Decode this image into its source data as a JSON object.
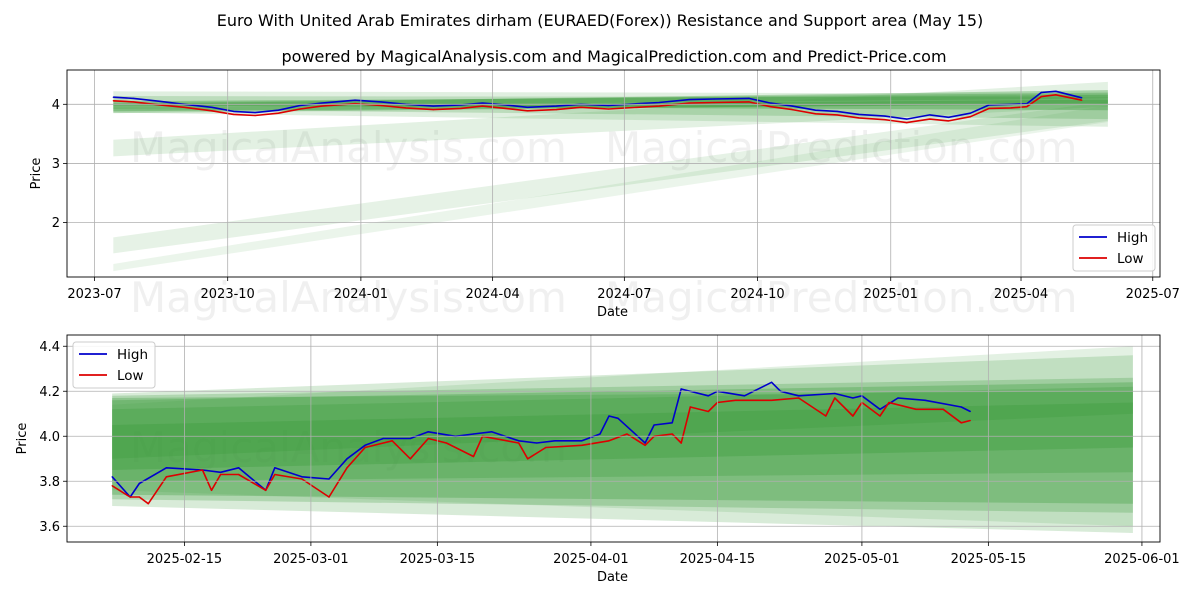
{
  "title": "Euro With United Arab Emirates dirham (EURAED(Forex)) Resistance and Support area (May 15)",
  "subtitle": "powered by MagicalAnalysis.com and MagicalPrediction.com and Predict-Price.com",
  "watermarks": [
    "MagicalAnalysis.com",
    "MagicalPrediction.com"
  ],
  "colors": {
    "high": "#0000cc",
    "low": "#dd0000",
    "band": "#3c9b3c",
    "grid": "#b0b0b0"
  },
  "chart_data": [
    {
      "type": "line",
      "title": "",
      "xlabel": "Date",
      "ylabel": "Price",
      "x_ticks": [
        "2023-07",
        "2023-10",
        "2024-01",
        "2024-04",
        "2024-07",
        "2024-10",
        "2025-01",
        "2025-04",
        "2025-07"
      ],
      "y_ticks": [
        "2",
        "3",
        "4"
      ],
      "legend": {
        "position": "bottom-right",
        "entries": [
          "High",
          "Low"
        ]
      },
      "series": [
        {
          "name": "High",
          "points": [
            [
              "2023-07-14",
              4.12
            ],
            [
              "2023-07-28",
              4.1
            ],
            [
              "2023-08-15",
              4.05
            ],
            [
              "2023-09-01",
              4.0
            ],
            [
              "2023-09-20",
              3.95
            ],
            [
              "2023-10-05",
              3.88
            ],
            [
              "2023-10-20",
              3.86
            ],
            [
              "2023-11-05",
              3.9
            ],
            [
              "2023-11-20",
              3.98
            ],
            [
              "2023-12-05",
              4.02
            ],
            [
              "2023-12-28",
              4.07
            ],
            [
              "2024-01-15",
              4.04
            ],
            [
              "2024-02-01",
              4.0
            ],
            [
              "2024-02-20",
              3.97
            ],
            [
              "2024-03-10",
              3.99
            ],
            [
              "2024-03-25",
              4.02
            ],
            [
              "2024-04-10",
              3.99
            ],
            [
              "2024-04-25",
              3.95
            ],
            [
              "2024-05-15",
              3.97
            ],
            [
              "2024-06-01",
              4.0
            ],
            [
              "2024-06-20",
              3.98
            ],
            [
              "2024-07-10",
              4.01
            ],
            [
              "2024-07-25",
              4.03
            ],
            [
              "2024-08-15",
              4.08
            ],
            [
              "2024-09-01",
              4.09
            ],
            [
              "2024-09-25",
              4.1
            ],
            [
              "2024-10-10",
              4.02
            ],
            [
              "2024-10-25",
              3.97
            ],
            [
              "2024-11-10",
              3.9
            ],
            [
              "2024-11-25",
              3.88
            ],
            [
              "2024-12-10",
              3.83
            ],
            [
              "2024-12-28",
              3.8
            ],
            [
              "2025-01-12",
              3.75
            ],
            [
              "2025-01-28",
              3.82
            ],
            [
              "2025-02-10",
              3.78
            ],
            [
              "2025-02-25",
              3.85
            ],
            [
              "2025-03-10",
              3.99
            ],
            [
              "2025-03-25",
              4.0
            ],
            [
              "2025-04-05",
              4.01
            ],
            [
              "2025-04-15",
              4.2
            ],
            [
              "2025-04-25",
              4.22
            ],
            [
              "2025-05-13",
              4.11
            ]
          ]
        },
        {
          "name": "Low",
          "points": [
            [
              "2023-07-14",
              4.06
            ],
            [
              "2023-07-28",
              4.04
            ],
            [
              "2023-08-15",
              3.99
            ],
            [
              "2023-09-01",
              3.95
            ],
            [
              "2023-09-20",
              3.89
            ],
            [
              "2023-10-05",
              3.83
            ],
            [
              "2023-10-20",
              3.81
            ],
            [
              "2023-11-05",
              3.85
            ],
            [
              "2023-11-20",
              3.92
            ],
            [
              "2023-12-05",
              3.97
            ],
            [
              "2023-12-28",
              4.01
            ],
            [
              "2024-01-15",
              3.98
            ],
            [
              "2024-02-01",
              3.94
            ],
            [
              "2024-02-20",
              3.91
            ],
            [
              "2024-03-10",
              3.93
            ],
            [
              "2024-03-25",
              3.97
            ],
            [
              "2024-04-10",
              3.93
            ],
            [
              "2024-04-25",
              3.89
            ],
            [
              "2024-05-15",
              3.91
            ],
            [
              "2024-06-01",
              3.95
            ],
            [
              "2024-06-20",
              3.92
            ],
            [
              "2024-07-10",
              3.95
            ],
            [
              "2024-07-25",
              3.97
            ],
            [
              "2024-08-15",
              4.02
            ],
            [
              "2024-09-01",
              4.03
            ],
            [
              "2024-09-25",
              4.04
            ],
            [
              "2024-10-10",
              3.96
            ],
            [
              "2024-10-25",
              3.91
            ],
            [
              "2024-11-10",
              3.84
            ],
            [
              "2024-11-25",
              3.82
            ],
            [
              "2024-12-10",
              3.77
            ],
            [
              "2024-12-28",
              3.74
            ],
            [
              "2025-01-12",
              3.69
            ],
            [
              "2025-01-28",
              3.75
            ],
            [
              "2025-02-10",
              3.72
            ],
            [
              "2025-02-25",
              3.79
            ],
            [
              "2025-03-10",
              3.93
            ],
            [
              "2025-03-25",
              3.94
            ],
            [
              "2025-04-05",
              3.96
            ],
            [
              "2025-04-15",
              4.13
            ],
            [
              "2025-04-25",
              4.16
            ],
            [
              "2025-05-13",
              4.07
            ]
          ]
        }
      ]
    },
    {
      "type": "line",
      "title": "",
      "xlabel": "Date",
      "ylabel": "Price",
      "x_ticks": [
        "2025-02-15",
        "2025-03-01",
        "2025-03-15",
        "2025-04-01",
        "2025-04-15",
        "2025-05-01",
        "2025-05-15",
        "2025-06-01"
      ],
      "y_ticks": [
        "3.6",
        "3.8",
        "4.0",
        "4.2",
        "4.4"
      ],
      "legend": {
        "position": "top-left",
        "entries": [
          "High",
          "Low"
        ]
      },
      "series": [
        {
          "name": "High",
          "points": [
            [
              "2025-02-07",
              3.82
            ],
            [
              "2025-02-09",
              3.73
            ],
            [
              "2025-02-10",
              3.79
            ],
            [
              "2025-02-13",
              3.86
            ],
            [
              "2025-02-17",
              3.85
            ],
            [
              "2025-02-19",
              3.84
            ],
            [
              "2025-02-21",
              3.86
            ],
            [
              "2025-02-24",
              3.76
            ],
            [
              "2025-02-25",
              3.86
            ],
            [
              "2025-02-28",
              3.82
            ],
            [
              "2025-03-03",
              3.81
            ],
            [
              "2025-03-05",
              3.9
            ],
            [
              "2025-03-07",
              3.96
            ],
            [
              "2025-03-09",
              3.99
            ],
            [
              "2025-03-12",
              3.99
            ],
            [
              "2025-03-14",
              4.02
            ],
            [
              "2025-03-17",
              4.0
            ],
            [
              "2025-03-19",
              4.01
            ],
            [
              "2025-03-21",
              4.02
            ],
            [
              "2025-03-24",
              3.98
            ],
            [
              "2025-03-26",
              3.97
            ],
            [
              "2025-03-28",
              3.98
            ],
            [
              "2025-03-31",
              3.98
            ],
            [
              "2025-04-02",
              4.01
            ],
            [
              "2025-04-03",
              4.09
            ],
            [
              "2025-04-04",
              4.08
            ],
            [
              "2025-04-07",
              3.97
            ],
            [
              "2025-04-08",
              4.05
            ],
            [
              "2025-04-10",
              4.06
            ],
            [
              "2025-04-11",
              4.21
            ],
            [
              "2025-04-14",
              4.18
            ],
            [
              "2025-04-15",
              4.2
            ],
            [
              "2025-04-18",
              4.18
            ],
            [
              "2025-04-21",
              4.24
            ],
            [
              "2025-04-22",
              4.2
            ],
            [
              "2025-04-24",
              4.18
            ],
            [
              "2025-04-28",
              4.19
            ],
            [
              "2025-04-30",
              4.17
            ],
            [
              "2025-05-01",
              4.18
            ],
            [
              "2025-05-03",
              4.12
            ],
            [
              "2025-05-05",
              4.17
            ],
            [
              "2025-05-08",
              4.16
            ],
            [
              "2025-05-12",
              4.13
            ],
            [
              "2025-05-13",
              4.11
            ]
          ]
        },
        {
          "name": "Low",
          "points": [
            [
              "2025-02-07",
              3.78
            ],
            [
              "2025-02-09",
              3.73
            ],
            [
              "2025-02-10",
              3.73
            ],
            [
              "2025-02-11",
              3.7
            ],
            [
              "2025-02-13",
              3.82
            ],
            [
              "2025-02-17",
              3.85
            ],
            [
              "2025-02-18",
              3.76
            ],
            [
              "2025-02-19",
              3.83
            ],
            [
              "2025-02-21",
              3.83
            ],
            [
              "2025-02-24",
              3.76
            ],
            [
              "2025-02-25",
              3.83
            ],
            [
              "2025-02-28",
              3.81
            ],
            [
              "2025-03-03",
              3.73
            ],
            [
              "2025-03-05",
              3.86
            ],
            [
              "2025-03-07",
              3.95
            ],
            [
              "2025-03-10",
              3.98
            ],
            [
              "2025-03-12",
              3.9
            ],
            [
              "2025-03-14",
              3.99
            ],
            [
              "2025-03-16",
              3.97
            ],
            [
              "2025-03-19",
              3.91
            ],
            [
              "2025-03-20",
              4.0
            ],
            [
              "2025-03-24",
              3.97
            ],
            [
              "2025-03-25",
              3.9
            ],
            [
              "2025-03-27",
              3.95
            ],
            [
              "2025-03-31",
              3.96
            ],
            [
              "2025-04-03",
              3.98
            ],
            [
              "2025-04-05",
              4.01
            ],
            [
              "2025-04-07",
              3.96
            ],
            [
              "2025-04-08",
              4.0
            ],
            [
              "2025-04-10",
              4.01
            ],
            [
              "2025-04-11",
              3.97
            ],
            [
              "2025-04-12",
              4.13
            ],
            [
              "2025-04-14",
              4.11
            ],
            [
              "2025-04-15",
              4.15
            ],
            [
              "2025-04-17",
              4.16
            ],
            [
              "2025-04-21",
              4.16
            ],
            [
              "2025-04-24",
              4.17
            ],
            [
              "2025-04-27",
              4.09
            ],
            [
              "2025-04-28",
              4.17
            ],
            [
              "2025-04-30",
              4.09
            ],
            [
              "2025-05-01",
              4.15
            ],
            [
              "2025-05-03",
              4.09
            ],
            [
              "2025-05-04",
              4.15
            ],
            [
              "2025-05-07",
              4.12
            ],
            [
              "2025-05-10",
              4.12
            ],
            [
              "2025-05-12",
              4.06
            ],
            [
              "2025-05-13",
              4.07
            ]
          ]
        }
      ]
    }
  ]
}
